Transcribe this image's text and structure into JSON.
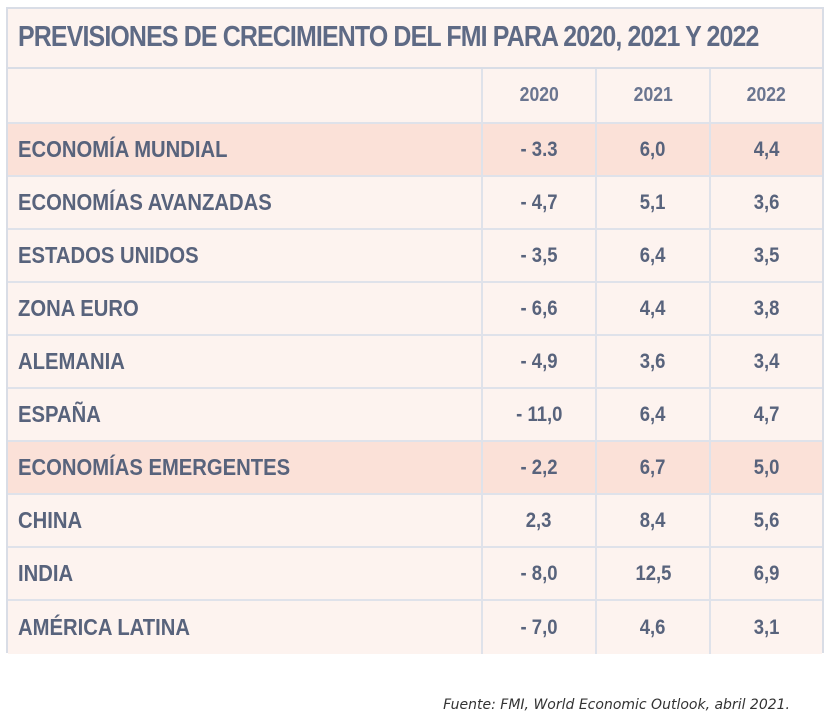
{
  "title": "PREVISIONES DE CRECIMIENTO DEL FMI PARA 2020, 2021 Y 2022",
  "source": "Fuente: FMI, World Economic Outlook, abril 2021.",
  "chart_data": {
    "type": "table",
    "columns": [
      "2020",
      "2021",
      "2022"
    ],
    "rows": [
      {
        "label": "ECONOMÍA MUNDIAL",
        "v2020": "- 3.3",
        "v2021": "6,0",
        "v2022": "4,4",
        "highlight": true
      },
      {
        "label": "ECONOMÍAS AVANZADAS",
        "v2020": "- 4,7",
        "v2021": "5,1",
        "v2022": "3,6",
        "highlight": false
      },
      {
        "label": "ESTADOS UNIDOS",
        "v2020": "- 3,5",
        "v2021": "6,4",
        "v2022": "3,5",
        "highlight": false
      },
      {
        "label": "ZONA EURO",
        "v2020": "- 6,6",
        "v2021": "4,4",
        "v2022": "3,8",
        "highlight": false
      },
      {
        "label": "ALEMANIA",
        "v2020": "- 4,9",
        "v2021": "3,6",
        "v2022": "3,4",
        "highlight": false
      },
      {
        "label": "ESPAÑA",
        "v2020": "- 11,0",
        "v2021": "6,4",
        "v2022": "4,7",
        "highlight": false
      },
      {
        "label": "ECONOMÍAS EMERGENTES",
        "v2020": "- 2,2",
        "v2021": "6,7",
        "v2022": "5,0",
        "highlight": true
      },
      {
        "label": "CHINA",
        "v2020": "2,3",
        "v2021": "8,4",
        "v2022": "5,6",
        "highlight": false
      },
      {
        "label": "INDIA",
        "v2020": "- 8,0",
        "v2021": "12,5",
        "v2022": "6,9",
        "highlight": false
      },
      {
        "label": "AMÉRICA LATINA",
        "v2020": "- 7,0",
        "v2021": "4,6",
        "v2022": "3,1",
        "highlight": false
      }
    ]
  }
}
